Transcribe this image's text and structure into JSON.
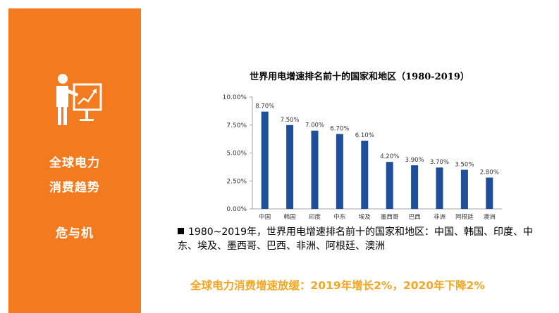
{
  "sidebar": {
    "line1": "全球电力",
    "line2": "消费趋势",
    "line3": "危与机"
  },
  "chart_data": {
    "type": "bar",
    "title": "世界用电增速排名前十的国家和地区（1980-2019）",
    "categories": [
      "中国",
      "韩国",
      "印度",
      "中东",
      "埃及",
      "墨西哥",
      "巴西",
      "非洲",
      "阿根廷",
      "澳洲"
    ],
    "values": [
      8.7,
      7.5,
      7.0,
      6.7,
      6.1,
      4.2,
      3.9,
      3.7,
      3.5,
      2.8
    ],
    "value_labels": [
      "8.70%",
      "7.50%",
      "7.00%",
      "6.70%",
      "6.10%",
      "4.20%",
      "3.90%",
      "3.70%",
      "3.50%",
      "2.80%"
    ],
    "yticks": [
      "0.00%",
      "2.50%",
      "5.00%",
      "7.50%",
      "10.00%"
    ],
    "ylim": [
      0,
      10
    ],
    "xlabel": "",
    "ylabel": "",
    "bar_color": "#1f4e9a",
    "grid": false
  },
  "caption": "1980~2019年，世界用电增速排名前十的国家和地区：中国、韩国、印度、中东、埃及、墨西哥、巴西、非洲、阿根廷、澳洲",
  "highlight": "全球电力消费增速放缓：2019年增长2%，2020年下降2%",
  "colors": {
    "accent": "#f47a1f",
    "highlight_text": "#f5a623"
  },
  "icons": {
    "presenter": "presenter-chart-icon"
  }
}
